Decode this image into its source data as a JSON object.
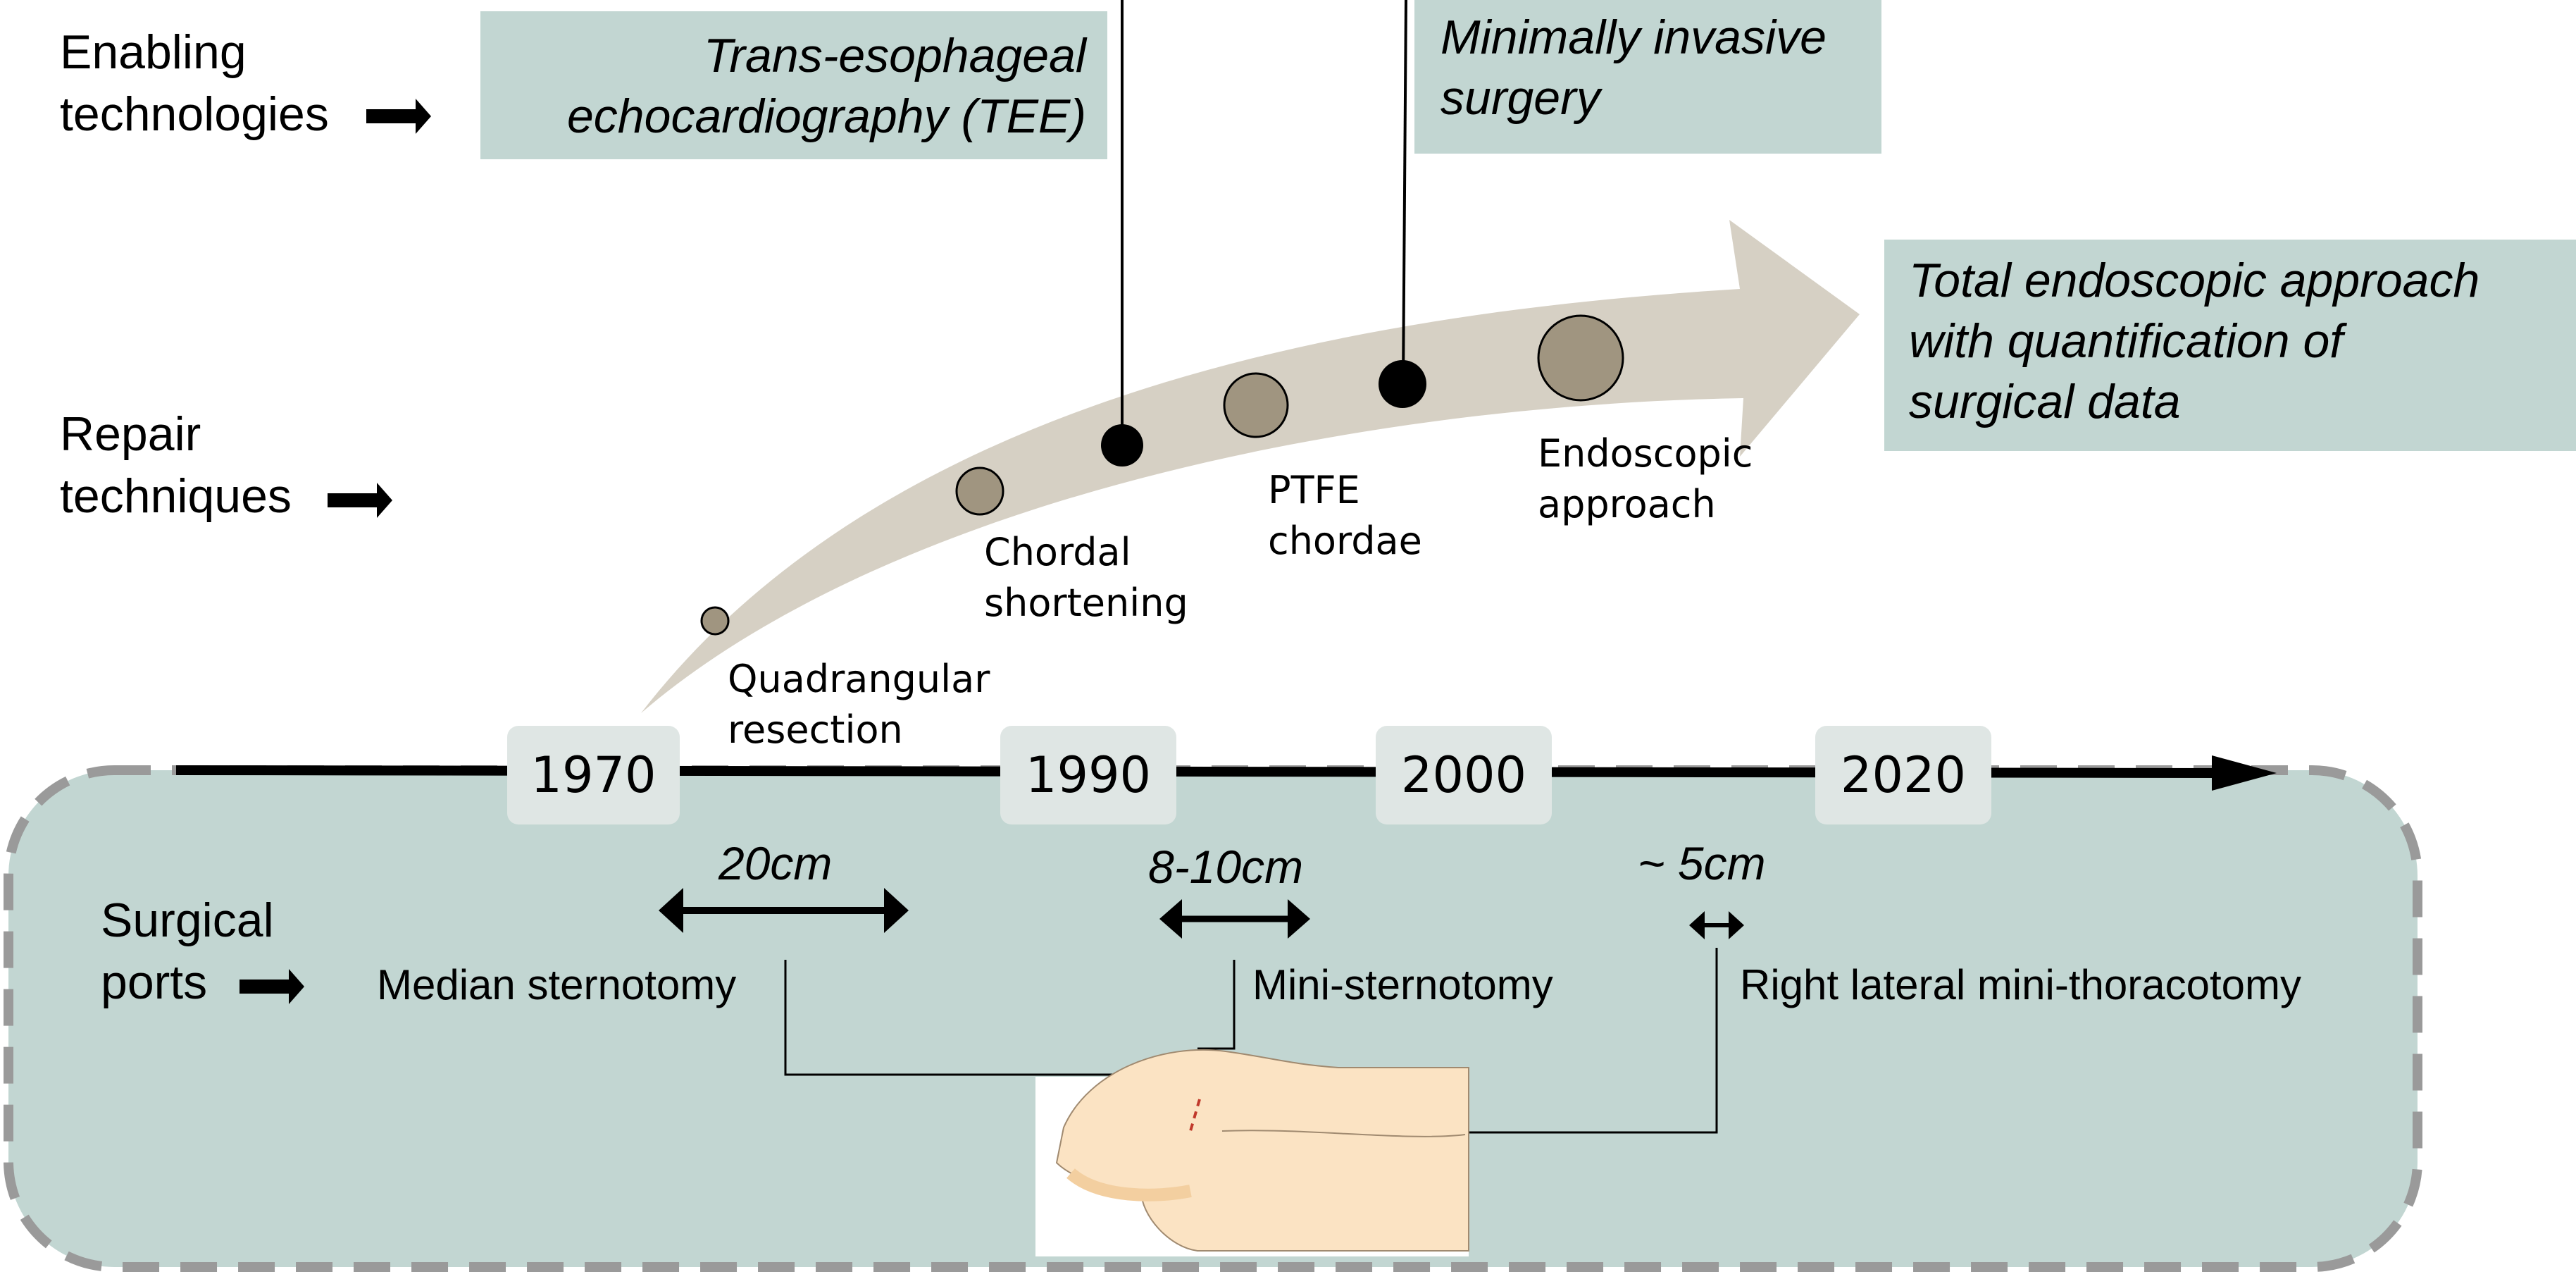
{
  "rows": {
    "enabling": {
      "line1": "Enabling",
      "line2": "technologies"
    },
    "repair": {
      "line1": "Repair",
      "line2": "techniques"
    },
    "ports": {
      "line1": "Surgical",
      "line2": "ports"
    }
  },
  "enabling_boxes": {
    "tee": {
      "line1": "Trans-esophageal",
      "line2": "echocardiography (TEE)"
    },
    "mis": {
      "line1": "Minimally invasive",
      "line2": "surgery"
    },
    "future": {
      "line1": "Total endoscopic approach",
      "line2": "with quantification of",
      "line3": "surgical data"
    }
  },
  "techniques": [
    {
      "line1": "Quadrangular",
      "line2": "resection"
    },
    {
      "line1": "Chordal",
      "line2": "shortening"
    },
    {
      "line1": "PTFE",
      "line2": "chordae"
    },
    {
      "line1": "Endoscopic",
      "line2": "approach"
    }
  ],
  "years": [
    "1970",
    "1990",
    "2000",
    "2020"
  ],
  "ports": [
    {
      "name": "Median sternotomy",
      "size": "20cm"
    },
    {
      "name": "Mini-sternotomy",
      "size": "8-10cm"
    },
    {
      "name": "Right lateral mini-thoracotomy",
      "size": "~ 5cm"
    }
  ],
  "colors": {
    "teal_box": "#c2d6d2",
    "arrow_band": "#d6d0c4",
    "marker_fill": "#a09580",
    "enabling_marker": "#000000",
    "year_tab": "#dfe6e4",
    "dashed_border": "#9a9a9a",
    "skin": "#fbe3c3"
  }
}
